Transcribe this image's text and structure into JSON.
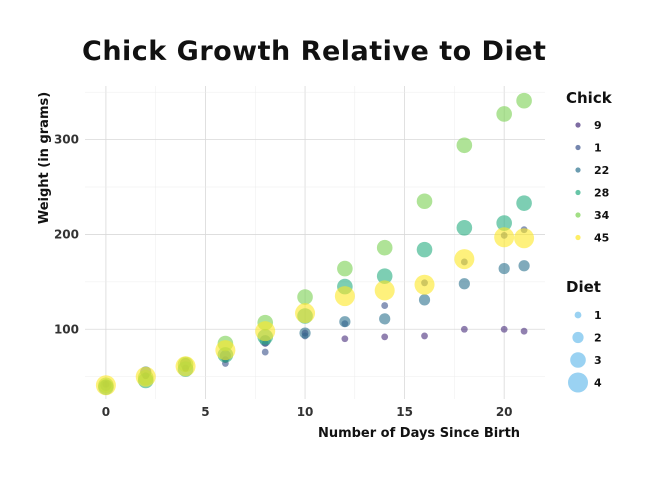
{
  "chart_data": {
    "type": "scatter",
    "title": "Chick Growth Relative to Diet",
    "xlabel": "Number of Days Since Birth",
    "ylabel": "Weight (in grams)",
    "xlim": [
      -1.05,
      22.05
    ],
    "ylim": [
      26.5,
      356.5
    ],
    "x_ticks": [
      0,
      5,
      10,
      15,
      20
    ],
    "y_ticks": [
      100,
      200,
      300
    ],
    "grid": true,
    "legend_position": "right",
    "size_legend": {
      "title": "Diet",
      "entries": [
        {
          "label": "1",
          "size": 1
        },
        {
          "label": "2",
          "size": 2
        },
        {
          "label": "3",
          "size": 3
        },
        {
          "label": "4",
          "size": 4
        }
      ]
    },
    "color_legend": {
      "title": "Chick",
      "entries": [
        "9",
        "1",
        "22",
        "28",
        "34",
        "45"
      ]
    },
    "series": [
      {
        "name": "9",
        "diet": 1,
        "color": "#472D7B",
        "x": [
          0,
          2,
          4,
          6,
          8,
          10,
          12,
          14,
          16,
          18,
          20,
          21
        ],
        "y": [
          42,
          51,
          59,
          68,
          85,
          96,
          90,
          92,
          93,
          100,
          100,
          98
        ]
      },
      {
        "name": "1",
        "diet": 1,
        "color": "#3B528B",
        "x": [
          0,
          2,
          4,
          6,
          8,
          10,
          12,
          14,
          16,
          18,
          20,
          21
        ],
        "y": [
          42,
          51,
          59,
          64,
          76,
          93,
          106,
          125,
          149,
          171,
          199,
          205
        ]
      },
      {
        "name": "22",
        "diet": 2,
        "color": "#2C728E",
        "x": [
          0,
          2,
          4,
          6,
          8,
          10,
          12,
          14,
          16,
          18,
          20,
          21
        ],
        "y": [
          41,
          55,
          64,
          72,
          88,
          96,
          108,
          111,
          131,
          148,
          164,
          167
        ]
      },
      {
        "name": "28",
        "diet": 3,
        "color": "#27AD81",
        "x": [
          0,
          2,
          4,
          6,
          8,
          10,
          12,
          14,
          16,
          18,
          20,
          21
        ],
        "y": [
          39,
          46,
          58,
          73,
          92,
          114,
          145,
          156,
          184,
          207,
          212,
          233
        ]
      },
      {
        "name": "34",
        "diet": 3,
        "color": "#7AD151",
        "x": [
          0,
          2,
          4,
          6,
          8,
          10,
          12,
          14,
          16,
          18,
          20,
          21
        ],
        "y": [
          41,
          49,
          63,
          85,
          107,
          134,
          164,
          186,
          235,
          294,
          327,
          341
        ]
      },
      {
        "name": "45",
        "diet": 4,
        "color": "#FDE725",
        "x": [
          0,
          2,
          4,
          6,
          8,
          10,
          12,
          14,
          16,
          18,
          20,
          21
        ],
        "y": [
          41,
          50,
          61,
          78,
          98,
          117,
          135,
          141,
          147,
          174,
          197,
          196
        ]
      }
    ]
  }
}
